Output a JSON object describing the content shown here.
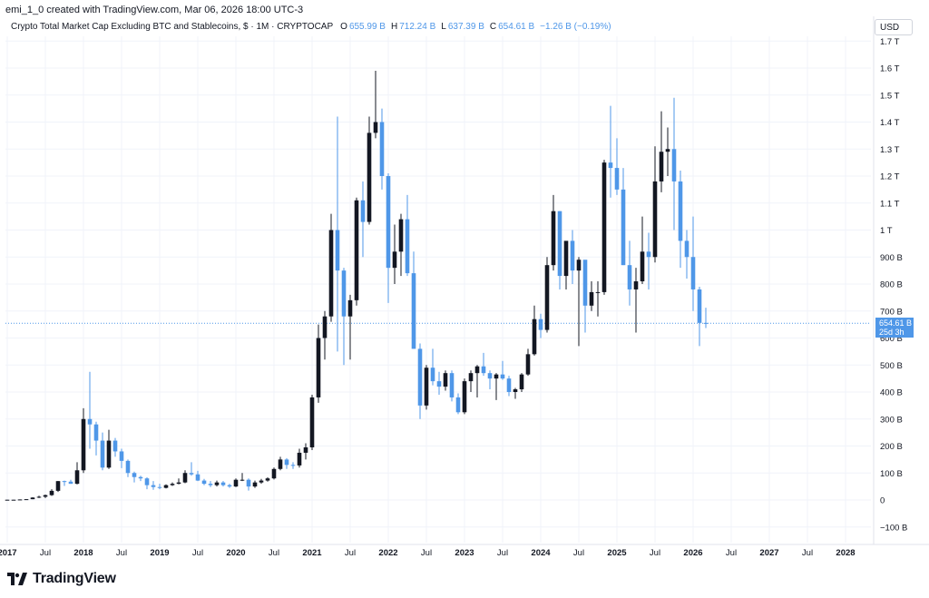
{
  "header": {
    "created_by": "emi_1_0 created with TradingView.com, Mar 06, 2026 18:00 UTC-3"
  },
  "legend": {
    "symbol": "Crypto Total Market Cap Excluding BTC and Stablecoins, $ · 1M · CRYPTOCAP",
    "open_label": "O",
    "open_value": "655.99 B",
    "high_label": "H",
    "high_value": "712.24 B",
    "low_label": "L",
    "low_value": "637.39 B",
    "close_label": "C",
    "close_value": "654.61 B",
    "change": "−1.26 B (−0.19%)"
  },
  "currency_button": "USD",
  "price_tag": {
    "value": "654.61 B",
    "countdown": "25d 3h"
  },
  "brand": {
    "name": "TradingView"
  },
  "colors": {
    "up": "#131722",
    "down": "#4f97e8",
    "grid": "#f0f3fa",
    "axis_text": "#131722"
  },
  "chart_data": {
    "type": "candlestick",
    "title": "Crypto Total Market Cap Excluding BTC and Stablecoins, $ · 1M · CRYPTOCAP",
    "y_unit": "B",
    "ylim": [
      -150,
      1750
    ],
    "y_ticks": [
      {
        "value": -100,
        "label": "−100 B"
      },
      {
        "value": 0,
        "label": "0"
      },
      {
        "value": 100,
        "label": "100 B"
      },
      {
        "value": 200,
        "label": "200 B"
      },
      {
        "value": 300,
        "label": "300 B"
      },
      {
        "value": 400,
        "label": "400 B"
      },
      {
        "value": 500,
        "label": "500 B"
      },
      {
        "value": 600,
        "label": "600 B"
      },
      {
        "value": 700,
        "label": "700 B"
      },
      {
        "value": 800,
        "label": "800 B"
      },
      {
        "value": 900,
        "label": "900 B"
      },
      {
        "value": 1000,
        "label": "1 T"
      },
      {
        "value": 1100,
        "label": "1.1 T"
      },
      {
        "value": 1200,
        "label": "1.2 T"
      },
      {
        "value": 1300,
        "label": "1.3 T"
      },
      {
        "value": 1400,
        "label": "1.4 T"
      },
      {
        "value": 1500,
        "label": "1.5 T"
      },
      {
        "value": 1600,
        "label": "1.6 T"
      },
      {
        "value": 1700,
        "label": "1.7 T"
      }
    ],
    "x_ticks": [
      {
        "date": "2017-01",
        "label": "2017"
      },
      {
        "date": "2017-07",
        "label": "Jul"
      },
      {
        "date": "2018-01",
        "label": "2018"
      },
      {
        "date": "2018-07",
        "label": "Jul"
      },
      {
        "date": "2019-01",
        "label": "2019"
      },
      {
        "date": "2019-07",
        "label": "Jul"
      },
      {
        "date": "2020-01",
        "label": "2020"
      },
      {
        "date": "2020-07",
        "label": "Jul"
      },
      {
        "date": "2021-01",
        "label": "2021"
      },
      {
        "date": "2021-07",
        "label": "Jul"
      },
      {
        "date": "2022-01",
        "label": "2022"
      },
      {
        "date": "2022-07",
        "label": "Jul"
      },
      {
        "date": "2023-01",
        "label": "2023"
      },
      {
        "date": "2023-07",
        "label": "Jul"
      },
      {
        "date": "2024-01",
        "label": "2024"
      },
      {
        "date": "2024-07",
        "label": "Jul"
      },
      {
        "date": "2025-01",
        "label": "2025"
      },
      {
        "date": "2025-07",
        "label": "Jul"
      },
      {
        "date": "2026-01",
        "label": "2026"
      },
      {
        "date": "2026-07",
        "label": "Jul"
      },
      {
        "date": "2027-01",
        "label": "2027"
      },
      {
        "date": "2027-07",
        "label": "Jul"
      },
      {
        "date": "2028-01",
        "label": "2028"
      }
    ],
    "x_range": [
      "2017-01",
      "2028-03"
    ],
    "last_price": 654.61,
    "series": [
      {
        "date": "2017-01",
        "o": 0,
        "h": 1,
        "l": 0,
        "c": 1
      },
      {
        "date": "2017-02",
        "o": 1,
        "h": 1,
        "l": 0,
        "c": 1
      },
      {
        "date": "2017-03",
        "o": 1,
        "h": 2,
        "l": 1,
        "c": 2
      },
      {
        "date": "2017-04",
        "o": 2,
        "h": 3,
        "l": 1,
        "c": 3
      },
      {
        "date": "2017-05",
        "o": 3,
        "h": 10,
        "l": 3,
        "c": 9
      },
      {
        "date": "2017-06",
        "o": 9,
        "h": 16,
        "l": 7,
        "c": 12
      },
      {
        "date": "2017-07",
        "o": 12,
        "h": 20,
        "l": 7,
        "c": 18
      },
      {
        "date": "2017-08",
        "o": 18,
        "h": 40,
        "l": 15,
        "c": 34
      },
      {
        "date": "2017-09",
        "o": 34,
        "h": 70,
        "l": 30,
        "c": 70
      },
      {
        "date": "2017-10",
        "o": 70,
        "h": 72,
        "l": 52,
        "c": 68
      },
      {
        "date": "2017-11",
        "o": 68,
        "h": 75,
        "l": 60,
        "c": 60
      },
      {
        "date": "2017-12",
        "o": 60,
        "h": 140,
        "l": 58,
        "c": 110
      },
      {
        "date": "2018-01",
        "o": 110,
        "h": 340,
        "l": 100,
        "c": 300
      },
      {
        "date": "2018-02",
        "o": 300,
        "h": 475,
        "l": 190,
        "c": 280
      },
      {
        "date": "2018-03",
        "o": 280,
        "h": 290,
        "l": 165,
        "c": 220
      },
      {
        "date": "2018-04",
        "o": 220,
        "h": 250,
        "l": 110,
        "c": 120
      },
      {
        "date": "2018-05",
        "o": 120,
        "h": 260,
        "l": 115,
        "c": 220
      },
      {
        "date": "2018-06",
        "o": 220,
        "h": 230,
        "l": 160,
        "c": 180
      },
      {
        "date": "2018-07",
        "o": 180,
        "h": 190,
        "l": 118,
        "c": 145
      },
      {
        "date": "2018-08",
        "o": 145,
        "h": 150,
        "l": 85,
        "c": 100
      },
      {
        "date": "2018-09",
        "o": 100,
        "h": 105,
        "l": 65,
        "c": 85
      },
      {
        "date": "2018-10",
        "o": 85,
        "h": 90,
        "l": 70,
        "c": 80
      },
      {
        "date": "2018-11",
        "o": 80,
        "h": 84,
        "l": 40,
        "c": 55
      },
      {
        "date": "2018-12",
        "o": 55,
        "h": 70,
        "l": 38,
        "c": 48
      },
      {
        "date": "2019-01",
        "o": 48,
        "h": 60,
        "l": 40,
        "c": 45
      },
      {
        "date": "2019-02",
        "o": 45,
        "h": 58,
        "l": 43,
        "c": 55
      },
      {
        "date": "2019-03",
        "o": 55,
        "h": 65,
        "l": 52,
        "c": 60
      },
      {
        "date": "2019-04",
        "o": 60,
        "h": 80,
        "l": 58,
        "c": 65
      },
      {
        "date": "2019-05",
        "o": 65,
        "h": 110,
        "l": 62,
        "c": 100
      },
      {
        "date": "2019-06",
        "o": 100,
        "h": 140,
        "l": 90,
        "c": 95
      },
      {
        "date": "2019-07",
        "o": 95,
        "h": 108,
        "l": 70,
        "c": 72
      },
      {
        "date": "2019-08",
        "o": 72,
        "h": 78,
        "l": 55,
        "c": 60
      },
      {
        "date": "2019-09",
        "o": 60,
        "h": 70,
        "l": 48,
        "c": 55
      },
      {
        "date": "2019-10",
        "o": 55,
        "h": 72,
        "l": 50,
        "c": 65
      },
      {
        "date": "2019-11",
        "o": 65,
        "h": 70,
        "l": 50,
        "c": 55
      },
      {
        "date": "2019-12",
        "o": 55,
        "h": 60,
        "l": 45,
        "c": 50
      },
      {
        "date": "2020-01",
        "o": 50,
        "h": 80,
        "l": 48,
        "c": 75
      },
      {
        "date": "2020-02",
        "o": 75,
        "h": 100,
        "l": 70,
        "c": 75
      },
      {
        "date": "2020-03",
        "o": 75,
        "h": 80,
        "l": 35,
        "c": 50
      },
      {
        "date": "2020-04",
        "o": 50,
        "h": 72,
        "l": 45,
        "c": 65
      },
      {
        "date": "2020-05",
        "o": 65,
        "h": 78,
        "l": 60,
        "c": 72
      },
      {
        "date": "2020-06",
        "o": 72,
        "h": 84,
        "l": 68,
        "c": 80
      },
      {
        "date": "2020-07",
        "o": 80,
        "h": 120,
        "l": 76,
        "c": 115
      },
      {
        "date": "2020-08",
        "o": 115,
        "h": 160,
        "l": 110,
        "c": 150
      },
      {
        "date": "2020-09",
        "o": 150,
        "h": 155,
        "l": 115,
        "c": 130
      },
      {
        "date": "2020-10",
        "o": 130,
        "h": 140,
        "l": 115,
        "c": 128
      },
      {
        "date": "2020-11",
        "o": 128,
        "h": 190,
        "l": 120,
        "c": 175
      },
      {
        "date": "2020-12",
        "o": 175,
        "h": 210,
        "l": 150,
        "c": 195
      },
      {
        "date": "2021-01",
        "o": 195,
        "h": 390,
        "l": 185,
        "c": 380
      },
      {
        "date": "2021-02",
        "o": 380,
        "h": 650,
        "l": 360,
        "c": 600
      },
      {
        "date": "2021-03",
        "o": 600,
        "h": 700,
        "l": 520,
        "c": 680
      },
      {
        "date": "2021-04",
        "o": 680,
        "h": 1060,
        "l": 660,
        "c": 1000
      },
      {
        "date": "2021-05",
        "o": 1000,
        "h": 1420,
        "l": 550,
        "c": 850
      },
      {
        "date": "2021-06",
        "o": 850,
        "h": 860,
        "l": 500,
        "c": 680
      },
      {
        "date": "2021-07",
        "o": 680,
        "h": 760,
        "l": 520,
        "c": 740
      },
      {
        "date": "2021-08",
        "o": 740,
        "h": 1120,
        "l": 720,
        "c": 1110
      },
      {
        "date": "2021-09",
        "o": 1110,
        "h": 1180,
        "l": 900,
        "c": 1030
      },
      {
        "date": "2021-10",
        "o": 1030,
        "h": 1420,
        "l": 1020,
        "c": 1360
      },
      {
        "date": "2021-11",
        "o": 1360,
        "h": 1590,
        "l": 1340,
        "c": 1400
      },
      {
        "date": "2021-12",
        "o": 1400,
        "h": 1450,
        "l": 1150,
        "c": 1200
      },
      {
        "date": "2022-01",
        "o": 1200,
        "h": 1210,
        "l": 730,
        "c": 860
      },
      {
        "date": "2022-02",
        "o": 860,
        "h": 1020,
        "l": 800,
        "c": 920
      },
      {
        "date": "2022-03",
        "o": 920,
        "h": 1060,
        "l": 830,
        "c": 1040
      },
      {
        "date": "2022-04",
        "o": 1040,
        "h": 1130,
        "l": 830,
        "c": 840
      },
      {
        "date": "2022-05",
        "o": 840,
        "h": 920,
        "l": 560,
        "c": 560
      },
      {
        "date": "2022-06",
        "o": 560,
        "h": 580,
        "l": 300,
        "c": 350
      },
      {
        "date": "2022-07",
        "o": 350,
        "h": 500,
        "l": 335,
        "c": 490
      },
      {
        "date": "2022-08",
        "o": 490,
        "h": 560,
        "l": 425,
        "c": 440
      },
      {
        "date": "2022-09",
        "o": 440,
        "h": 475,
        "l": 390,
        "c": 420
      },
      {
        "date": "2022-10",
        "o": 420,
        "h": 480,
        "l": 405,
        "c": 470
      },
      {
        "date": "2022-11",
        "o": 470,
        "h": 480,
        "l": 365,
        "c": 380
      },
      {
        "date": "2022-12",
        "o": 380,
        "h": 395,
        "l": 318,
        "c": 325
      },
      {
        "date": "2023-01",
        "o": 325,
        "h": 450,
        "l": 318,
        "c": 440
      },
      {
        "date": "2023-02",
        "o": 440,
        "h": 480,
        "l": 400,
        "c": 470
      },
      {
        "date": "2023-03",
        "o": 470,
        "h": 500,
        "l": 380,
        "c": 495
      },
      {
        "date": "2023-04",
        "o": 495,
        "h": 545,
        "l": 460,
        "c": 470
      },
      {
        "date": "2023-05",
        "o": 470,
        "h": 480,
        "l": 410,
        "c": 450
      },
      {
        "date": "2023-06",
        "o": 450,
        "h": 470,
        "l": 370,
        "c": 465
      },
      {
        "date": "2023-07",
        "o": 465,
        "h": 515,
        "l": 445,
        "c": 450
      },
      {
        "date": "2023-08",
        "o": 450,
        "h": 460,
        "l": 385,
        "c": 400
      },
      {
        "date": "2023-09",
        "o": 400,
        "h": 415,
        "l": 375,
        "c": 410
      },
      {
        "date": "2023-10",
        "o": 410,
        "h": 470,
        "l": 400,
        "c": 465
      },
      {
        "date": "2023-11",
        "o": 465,
        "h": 560,
        "l": 460,
        "c": 540
      },
      {
        "date": "2023-12",
        "o": 540,
        "h": 720,
        "l": 535,
        "c": 670
      },
      {
        "date": "2024-01",
        "o": 670,
        "h": 690,
        "l": 600,
        "c": 630
      },
      {
        "date": "2024-02",
        "o": 630,
        "h": 900,
        "l": 620,
        "c": 870
      },
      {
        "date": "2024-03",
        "o": 870,
        "h": 1130,
        "l": 850,
        "c": 1070
      },
      {
        "date": "2024-04",
        "o": 1070,
        "h": 1070,
        "l": 780,
        "c": 830
      },
      {
        "date": "2024-05",
        "o": 830,
        "h": 950,
        "l": 780,
        "c": 960
      },
      {
        "date": "2024-06",
        "o": 960,
        "h": 1000,
        "l": 800,
        "c": 850
      },
      {
        "date": "2024-07",
        "o": 850,
        "h": 900,
        "l": 570,
        "c": 890
      },
      {
        "date": "2024-08",
        "o": 890,
        "h": 880,
        "l": 620,
        "c": 720
      },
      {
        "date": "2024-09",
        "o": 720,
        "h": 810,
        "l": 700,
        "c": 770
      },
      {
        "date": "2024-10",
        "o": 770,
        "h": 810,
        "l": 680,
        "c": 770
      },
      {
        "date": "2024-11",
        "o": 770,
        "h": 1260,
        "l": 760,
        "c": 1250
      },
      {
        "date": "2024-12",
        "o": 1250,
        "h": 1460,
        "l": 1120,
        "c": 1230
      },
      {
        "date": "2025-01",
        "o": 1230,
        "h": 1340,
        "l": 1130,
        "c": 1150
      },
      {
        "date": "2025-02",
        "o": 1150,
        "h": 1230,
        "l": 870,
        "c": 870
      },
      {
        "date": "2025-03",
        "o": 870,
        "h": 960,
        "l": 720,
        "c": 780
      },
      {
        "date": "2025-04",
        "o": 780,
        "h": 860,
        "l": 620,
        "c": 810
      },
      {
        "date": "2025-05",
        "o": 810,
        "h": 1050,
        "l": 800,
        "c": 920
      },
      {
        "date": "2025-06",
        "o": 920,
        "h": 990,
        "l": 780,
        "c": 900
      },
      {
        "date": "2025-07",
        "o": 900,
        "h": 1310,
        "l": 880,
        "c": 1180
      },
      {
        "date": "2025-08",
        "o": 1180,
        "h": 1440,
        "l": 1140,
        "c": 1290
      },
      {
        "date": "2025-09",
        "o": 1290,
        "h": 1380,
        "l": 1200,
        "c": 1300
      },
      {
        "date": "2025-10",
        "o": 1300,
        "h": 1490,
        "l": 1000,
        "c": 1180
      },
      {
        "date": "2025-11",
        "o": 1180,
        "h": 1220,
        "l": 860,
        "c": 960
      },
      {
        "date": "2025-12",
        "o": 960,
        "h": 1000,
        "l": 820,
        "c": 900
      },
      {
        "date": "2026-01",
        "o": 900,
        "h": 1050,
        "l": 700,
        "c": 780
      },
      {
        "date": "2026-02",
        "o": 780,
        "h": 790,
        "l": 570,
        "c": 656
      },
      {
        "date": "2026-03",
        "o": 656,
        "h": 712,
        "l": 637,
        "c": 655
      }
    ]
  }
}
